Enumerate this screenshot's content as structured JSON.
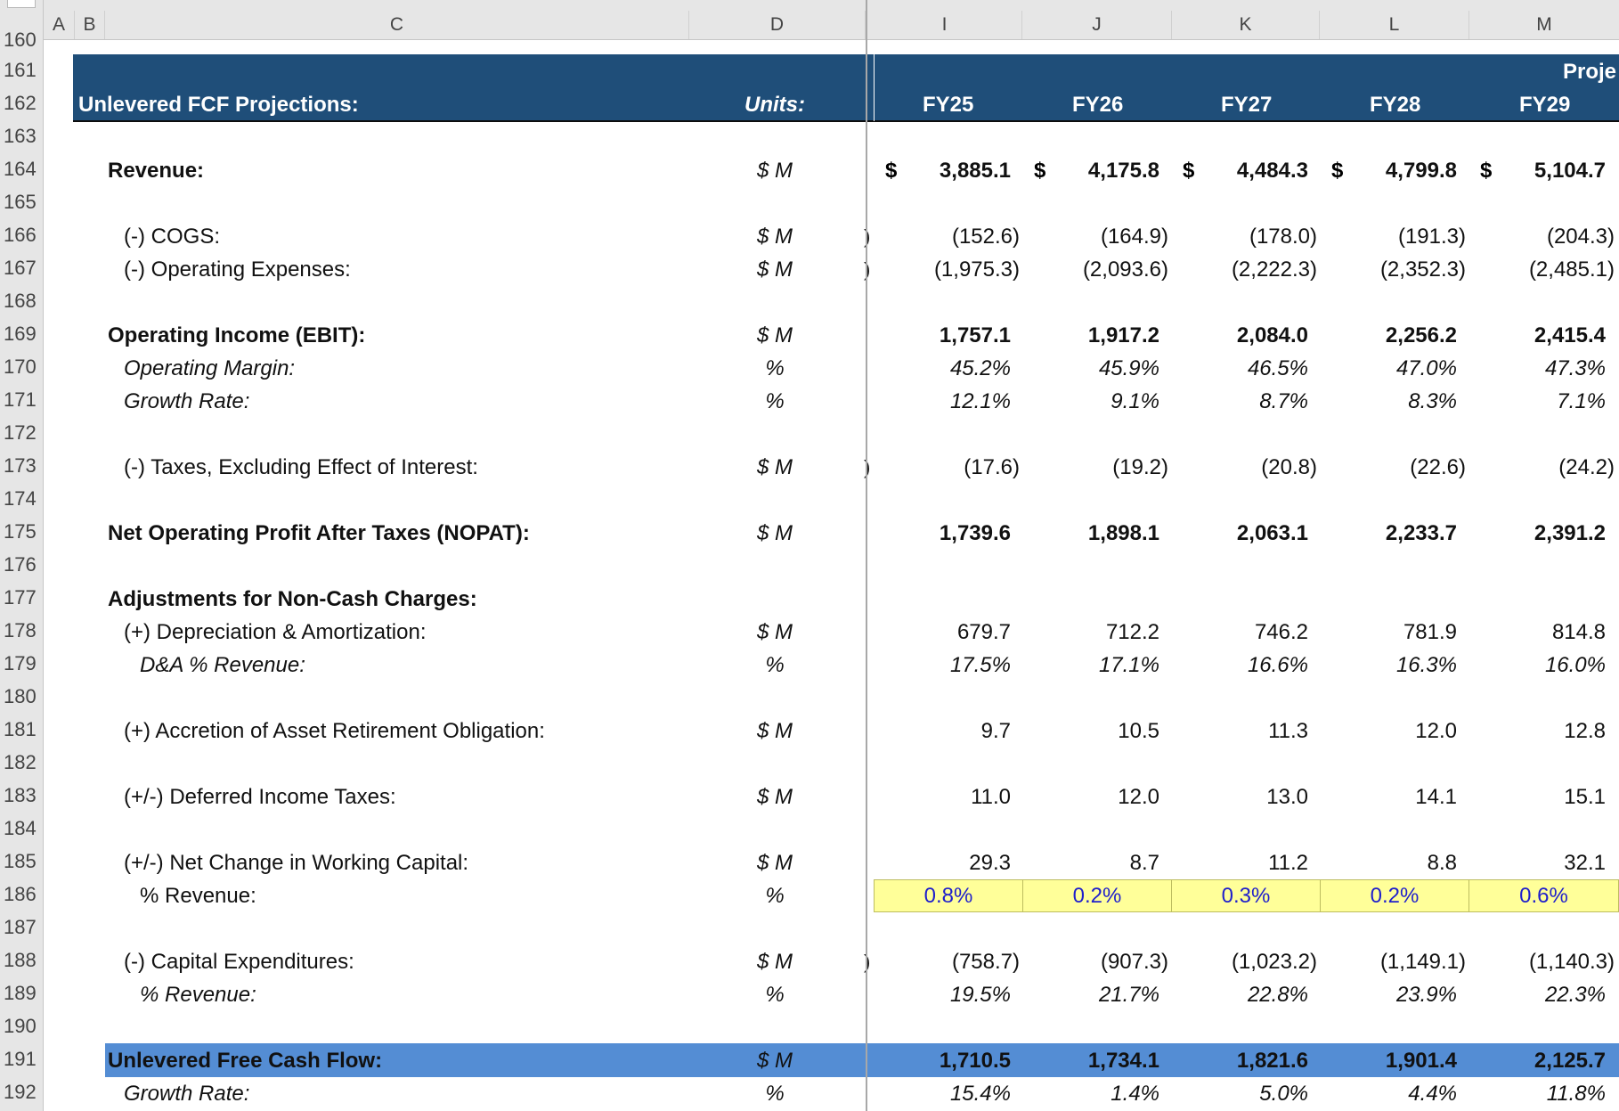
{
  "columns": [
    "A",
    "B",
    "C",
    "D",
    "I",
    "J",
    "K",
    "L",
    "M"
  ],
  "rows": [
    "160",
    "161",
    "162",
    "163",
    "164",
    "165",
    "166",
    "167",
    "168",
    "169",
    "170",
    "171",
    "172",
    "173",
    "174",
    "175",
    "176",
    "177",
    "178",
    "179",
    "180",
    "181",
    "182",
    "183",
    "184",
    "185",
    "186",
    "187",
    "188",
    "189",
    "190",
    "191",
    "192"
  ],
  "header": {
    "title": "Unlevered FCF Projections:",
    "units": "Units:",
    "group": "Proje",
    "years": [
      "FY25",
      "FY26",
      "FY27",
      "FY28",
      "FY29"
    ]
  },
  "units": {
    "m": "$ M",
    "pct": "%"
  },
  "currency_symbol": "$",
  "lines": {
    "revenue": {
      "label": "Revenue:",
      "values": [
        "3,885.1",
        "4,175.8",
        "4,484.3",
        "4,799.8",
        "5,104.7"
      ]
    },
    "cogs": {
      "label": "(-) COGS:",
      "values": [
        "(152.6)",
        "(164.9)",
        "(178.0)",
        "(191.3)",
        "(204.3)"
      ]
    },
    "opex": {
      "label": "(-) Operating Expenses:",
      "values": [
        "(1,975.3)",
        "(2,093.6)",
        "(2,222.3)",
        "(2,352.3)",
        "(2,485.1)"
      ]
    },
    "ebit": {
      "label": "Operating Income (EBIT):",
      "values": [
        "1,757.1",
        "1,917.2",
        "2,084.0",
        "2,256.2",
        "2,415.4"
      ]
    },
    "op_margin": {
      "label": "Operating Margin:",
      "values": [
        "45.2%",
        "45.9%",
        "46.5%",
        "47.0%",
        "47.3%"
      ]
    },
    "ebit_growth": {
      "label": "Growth Rate:",
      "values": [
        "12.1%",
        "9.1%",
        "8.7%",
        "8.3%",
        "7.1%"
      ]
    },
    "taxes": {
      "label": "(-) Taxes, Excluding Effect of Interest:",
      "values": [
        "(17.6)",
        "(19.2)",
        "(20.8)",
        "(22.6)",
        "(24.2)"
      ]
    },
    "nopat": {
      "label": "Net Operating Profit After Taxes (NOPAT):",
      "values": [
        "1,739.6",
        "1,898.1",
        "2,063.1",
        "2,233.7",
        "2,391.2"
      ]
    },
    "adjustments": {
      "label": "Adjustments for Non-Cash Charges:"
    },
    "da": {
      "label": "(+) Depreciation & Amortization:",
      "values": [
        "679.7",
        "712.2",
        "746.2",
        "781.9",
        "814.8"
      ]
    },
    "da_pct": {
      "label": "D&A % Revenue:",
      "values": [
        "17.5%",
        "17.1%",
        "16.6%",
        "16.3%",
        "16.0%"
      ]
    },
    "aro": {
      "label": "(+) Accretion of Asset Retirement Obligation:",
      "values": [
        "9.7",
        "10.5",
        "11.3",
        "12.0",
        "12.8"
      ]
    },
    "dit": {
      "label": "(+/-) Deferred Income Taxes:",
      "values": [
        "11.0",
        "12.0",
        "13.0",
        "14.1",
        "15.1"
      ]
    },
    "nwc": {
      "label": "(+/-) Net Change in Working Capital:",
      "values": [
        "29.3",
        "8.7",
        "11.2",
        "8.8",
        "32.1"
      ]
    },
    "nwc_pct": {
      "label": "% Revenue:",
      "values": [
        "0.8%",
        "0.2%",
        "0.3%",
        "0.2%",
        "0.6%"
      ]
    },
    "capex": {
      "label": "(-) Capital Expenditures:",
      "values": [
        "(758.7)",
        "(907.3)",
        "(1,023.2)",
        "(1,149.1)",
        "(1,140.3)"
      ]
    },
    "capex_pct": {
      "label": "% Revenue:",
      "values": [
        "19.5%",
        "21.7%",
        "22.8%",
        "23.9%",
        "22.3%"
      ]
    },
    "ufcf": {
      "label": "Unlevered Free Cash Flow:",
      "values": [
        "1,710.5",
        "1,734.1",
        "1,821.6",
        "1,901.4",
        "2,125.7"
      ]
    },
    "ufcf_growth": {
      "label": "Growth Rate:",
      "values": [
        "15.4%",
        "1.4%",
        "5.0%",
        "4.4%",
        "11.8%"
      ]
    }
  },
  "cut_glyph": ")",
  "colors": {
    "header_band": "#1f4e79",
    "ufcf_band": "#548dd4",
    "input_fill": "#ffff99",
    "input_text": "#1f1fcc"
  }
}
